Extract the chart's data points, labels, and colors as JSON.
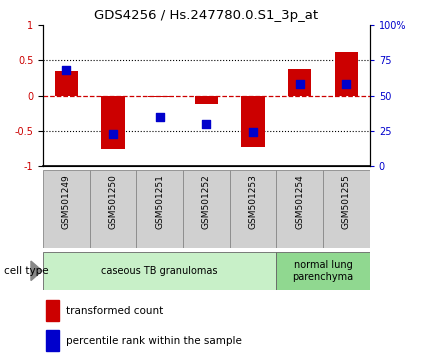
{
  "title": "GDS4256 / Hs.247780.0.S1_3p_at",
  "samples": [
    "GSM501249",
    "GSM501250",
    "GSM501251",
    "GSM501252",
    "GSM501253",
    "GSM501254",
    "GSM501255"
  ],
  "red_values": [
    0.35,
    -0.75,
    -0.02,
    -0.12,
    -0.72,
    0.38,
    0.62
  ],
  "blue_values_pct": [
    68,
    23,
    35,
    30,
    24,
    58,
    58
  ],
  "cell_type_groups": [
    {
      "start": 0,
      "end": 4,
      "label": "caseous TB granulomas",
      "color": "#c8f0c8"
    },
    {
      "start": 5,
      "end": 6,
      "label": "normal lung\nparenchyma",
      "color": "#90d890"
    }
  ],
  "ylim_left": [
    -1,
    1
  ],
  "yticks_left": [
    -1,
    -0.5,
    0,
    0.5,
    1
  ],
  "ytick_labels_left": [
    "-1",
    "-0.5",
    "0",
    "0.5",
    "1"
  ],
  "yticks_right": [
    0,
    25,
    50,
    75,
    100
  ],
  "ytick_labels_right": [
    "0",
    "25",
    "50",
    "75",
    "100%"
  ],
  "red_color": "#cc0000",
  "blue_color": "#0000cc",
  "bar_width": 0.5,
  "blue_square_size": 35,
  "label_box_color": "#d0d0d0",
  "label_box_edge": "#888888"
}
